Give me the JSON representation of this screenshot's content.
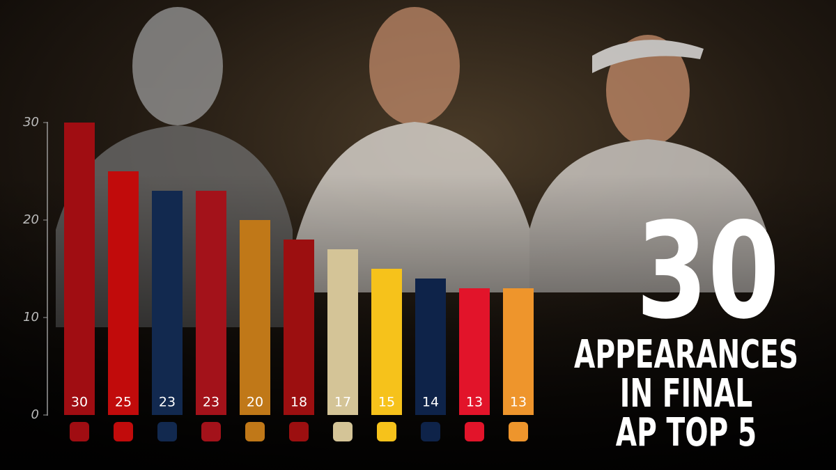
{
  "chart_data": {
    "type": "bar",
    "values": [
      30,
      25,
      23,
      23,
      20,
      18,
      17,
      15,
      14,
      13,
      13
    ],
    "colors": [
      "#a00d12",
      "#c10b0b",
      "#12294f",
      "#a3121a",
      "#c07818",
      "#9c0f10",
      "#d4c497",
      "#f6c21b",
      "#0e2349",
      "#e2142a",
      "#ee952c"
    ],
    "ylim": [
      0,
      30
    ],
    "yticks": [
      0,
      10,
      20,
      30
    ]
  },
  "annotation": {
    "number": "30",
    "lines": [
      "APPEARANCES",
      "IN FINAL",
      "AP TOP 5"
    ]
  }
}
